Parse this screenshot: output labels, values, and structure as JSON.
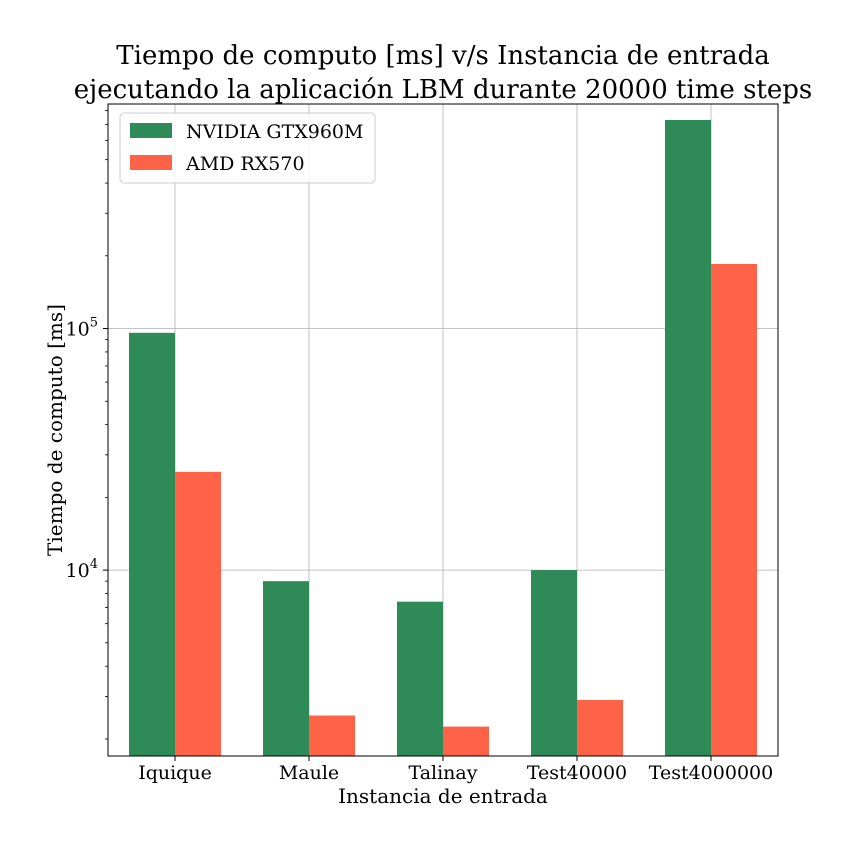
{
  "chart_data": {
    "type": "bar",
    "title": [
      "Tiempo de computo [ms] v/s Instancia de entrada",
      "ejecutando la aplicación LBM durante 20000 time steps"
    ],
    "xlabel": "Instancia de entrada",
    "ylabel": "Tiempo de computo [ms]",
    "yscale": "log",
    "ylim": [
      1700,
      850000
    ],
    "yticks": [
      {
        "value": 10000,
        "base": "10",
        "exp": "4"
      },
      {
        "value": 100000,
        "base": "10",
        "exp": "5"
      }
    ],
    "grid": true,
    "legend_position": "top-left",
    "categories": [
      "Iquique",
      "Maule",
      "Talinay",
      "Test40000",
      "Test4000000"
    ],
    "series": [
      {
        "name": "NVIDIA GTX960M",
        "color": "#2e8b57",
        "values": [
          96000,
          9000,
          7400,
          10000,
          730000
        ]
      },
      {
        "name": "AMD RX570",
        "color": "#ff6347",
        "values": [
          25500,
          2500,
          2250,
          2900,
          185000
        ]
      }
    ]
  }
}
